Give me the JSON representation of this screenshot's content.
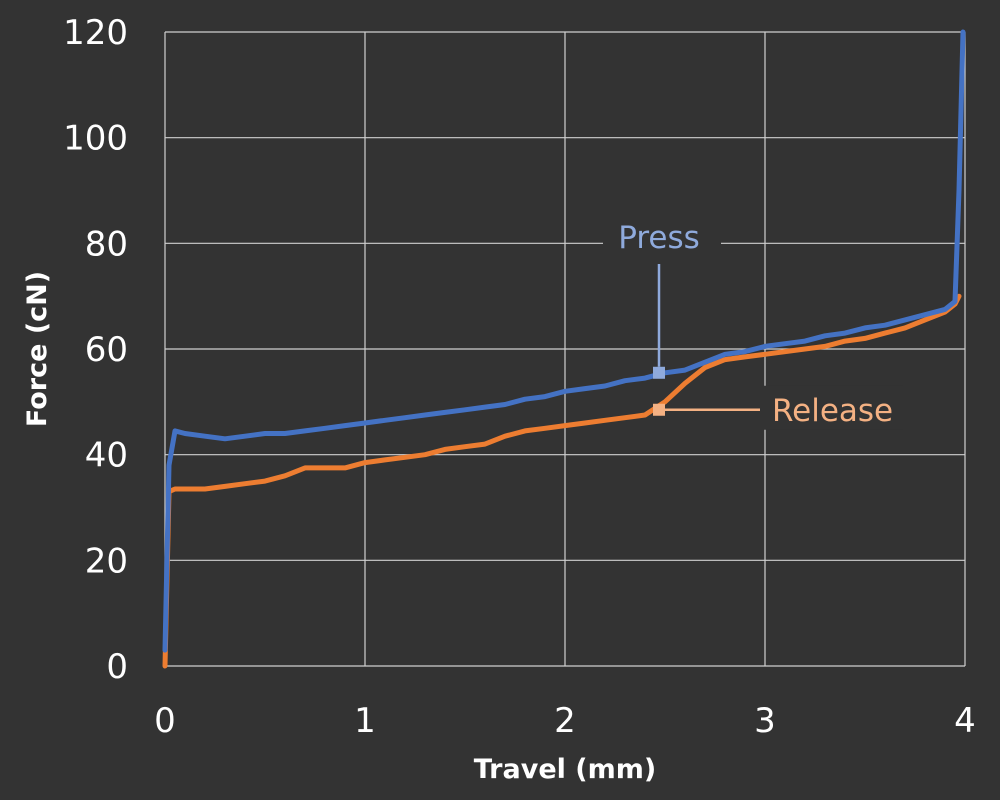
{
  "chart_data": {
    "type": "line",
    "title": "",
    "xlabel": "Travel (mm)",
    "ylabel": "Force (cN)",
    "xlim": [
      0,
      4
    ],
    "ylim": [
      0,
      120
    ],
    "x_ticks": [
      0,
      1,
      2,
      3,
      4
    ],
    "y_ticks": [
      0,
      20,
      40,
      60,
      80,
      100,
      120
    ],
    "grid": true,
    "background": "#333333",
    "grid_color": "#d0d0d0",
    "series": [
      {
        "name": "Press",
        "color": "#4472c4",
        "label_color": "#8faadc",
        "callout_at": [
          2.47,
          55.5
        ],
        "x": [
          0.0,
          0.02,
          0.05,
          0.1,
          0.2,
          0.3,
          0.4,
          0.5,
          0.6,
          0.7,
          0.8,
          0.9,
          1.0,
          1.1,
          1.2,
          1.3,
          1.4,
          1.5,
          1.6,
          1.7,
          1.8,
          1.9,
          2.0,
          2.1,
          2.2,
          2.3,
          2.4,
          2.5,
          2.6,
          2.7,
          2.8,
          2.9,
          3.0,
          3.1,
          3.2,
          3.3,
          3.4,
          3.5,
          3.6,
          3.7,
          3.8,
          3.9,
          3.95,
          3.97,
          3.99
        ],
        "y": [
          3,
          38,
          44.5,
          44,
          43.5,
          43,
          43.5,
          44,
          44,
          44.5,
          45,
          45.5,
          46,
          46.5,
          47,
          47.5,
          48,
          48.5,
          49,
          49.5,
          50.5,
          51,
          52,
          52.5,
          53,
          54,
          54.5,
          55.5,
          56,
          57.5,
          59,
          59.5,
          60.5,
          61,
          61.5,
          62.5,
          63,
          64,
          64.5,
          65.5,
          66.5,
          67.5,
          69,
          90,
          120
        ]
      },
      {
        "name": "Release",
        "color": "#ed7d31",
        "label_color": "#f4b183",
        "callout_at": [
          2.47,
          48.5
        ],
        "x": [
          0.0,
          0.02,
          0.05,
          0.1,
          0.2,
          0.3,
          0.4,
          0.5,
          0.6,
          0.7,
          0.8,
          0.9,
          1.0,
          1.1,
          1.2,
          1.3,
          1.4,
          1.5,
          1.6,
          1.7,
          1.8,
          1.9,
          2.0,
          2.1,
          2.2,
          2.3,
          2.4,
          2.5,
          2.6,
          2.7,
          2.8,
          2.9,
          3.0,
          3.1,
          3.2,
          3.3,
          3.4,
          3.5,
          3.6,
          3.7,
          3.8,
          3.9,
          3.95,
          3.97
        ],
        "y": [
          0,
          33,
          33.5,
          33.5,
          33.5,
          34,
          34.5,
          35,
          36,
          37.5,
          37.5,
          37.5,
          38.5,
          39,
          39.5,
          40,
          41,
          41.5,
          42,
          43.5,
          44.5,
          45,
          45.5,
          46,
          46.5,
          47,
          47.5,
          50,
          53.5,
          56.5,
          58,
          58.5,
          59,
          59.5,
          60,
          60.5,
          61.5,
          62,
          63,
          64,
          65.5,
          67,
          68.5,
          70
        ]
      }
    ]
  }
}
